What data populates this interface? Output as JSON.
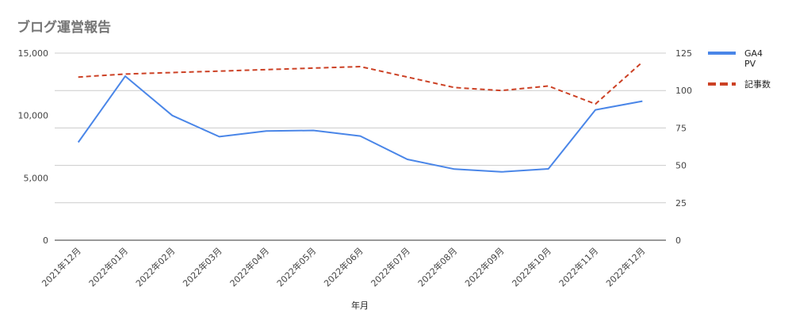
{
  "chart_data": {
    "type": "line",
    "title": "ブログ運営報告",
    "xlabel": "年月",
    "ylabel_left": "",
    "ylabel_right": "",
    "categories": [
      "2021年12月",
      "2022年01月",
      "2022年02月",
      "2022年03月",
      "2022年04月",
      "2022年05月",
      "2022年06月",
      "2022年07月",
      "2022年08月",
      "2022年09月",
      "2022年10月",
      "2022年11月",
      "2022年12月"
    ],
    "y_left": {
      "min": 0,
      "max": 15000,
      "ticks": [
        "0",
        "5,000",
        "10,000",
        "15,000"
      ],
      "tick_values": [
        0,
        5000,
        10000,
        15000
      ]
    },
    "y_right": {
      "min": 0,
      "max": 125,
      "ticks": [
        "0",
        "25",
        "50",
        "75",
        "100",
        "125"
      ],
      "tick_values": [
        0,
        25,
        50,
        75,
        100,
        125
      ]
    },
    "grid": true,
    "legend_position": "right",
    "series": [
      {
        "name": "GA4 PV",
        "name_lines": [
          "GA4",
          "PV"
        ],
        "axis": "left",
        "color": "#4a86e8",
        "style": "solid",
        "values": [
          7850,
          13150,
          10000,
          8300,
          8750,
          8800,
          8350,
          6480,
          5700,
          5480,
          5720,
          10450,
          11150
        ]
      },
      {
        "name": "記事数",
        "name_lines": [
          "記事数"
        ],
        "axis": "right",
        "color": "#cc4125",
        "style": "dashed",
        "values": [
          109,
          111,
          112,
          113,
          114,
          115,
          116,
          109,
          102,
          100,
          103,
          91,
          119
        ]
      }
    ]
  }
}
